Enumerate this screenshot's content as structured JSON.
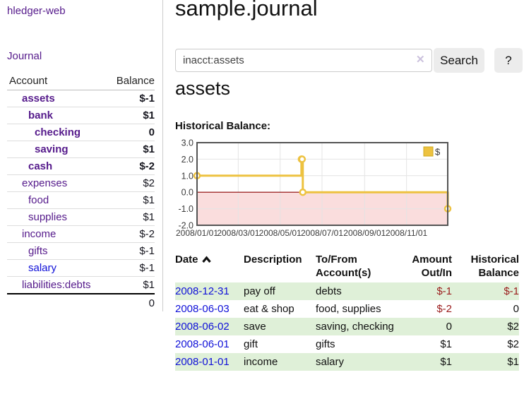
{
  "colors": {
    "link_purple": "#551a8b",
    "link_blue": "#0f10d8",
    "negative_strong": "#9a1b1b",
    "negative_muted": "#b86f6f",
    "row_green": "#dff0d8",
    "series_gold": "#edc240",
    "negative_region_pink": "#fadddd",
    "zero_line_red": "#8b0000",
    "chart_border_gray": "#545454",
    "grid_gray": "#e4e4e4",
    "button_gray": "#ececec"
  },
  "sidebar": {
    "app_title": "hledger-web",
    "journal_link": "Journal",
    "table": {
      "account_header": "Account",
      "balance_header": "Balance",
      "rows": [
        {
          "account": "assets",
          "balance": "$-1",
          "level": 1,
          "bold": true,
          "link_color": "purple",
          "balance_tone": "neg-strong"
        },
        {
          "account": "bank",
          "balance": "$1",
          "level": 2,
          "bold": true,
          "link_color": "purple",
          "balance_tone": ""
        },
        {
          "account": "checking",
          "balance": "0",
          "level": 3,
          "bold": true,
          "link_color": "purple",
          "balance_tone": ""
        },
        {
          "account": "saving",
          "balance": "$1",
          "level": 3,
          "bold": true,
          "link_color": "purple",
          "balance_tone": ""
        },
        {
          "account": "cash",
          "balance": "$-2",
          "level": 2,
          "bold": true,
          "link_color": "purple",
          "balance_tone": "neg-strong"
        },
        {
          "account": "expenses",
          "balance": "$2",
          "level": 1,
          "bold": false,
          "link_color": "purple",
          "balance_tone": ""
        },
        {
          "account": "food",
          "balance": "$1",
          "level": 2,
          "bold": false,
          "link_color": "purple",
          "balance_tone": ""
        },
        {
          "account": "supplies",
          "balance": "$1",
          "level": 2,
          "bold": false,
          "link_color": "purple",
          "balance_tone": ""
        },
        {
          "account": "income",
          "balance": "$-2",
          "level": 1,
          "bold": false,
          "link_color": "purple",
          "balance_tone": "neg-muted"
        },
        {
          "account": "gifts",
          "balance": "$-1",
          "level": 2,
          "bold": false,
          "link_color": "purple",
          "balance_tone": "neg-muted"
        },
        {
          "account": "salary",
          "balance": "$-1",
          "level": 2,
          "bold": false,
          "link_color": "blue",
          "balance_tone": "neg-muted"
        },
        {
          "account": "liabilities:debts",
          "balance": "$1",
          "level": 1,
          "bold": false,
          "link_color": "purple",
          "balance_tone": ""
        }
      ],
      "total": "0"
    }
  },
  "main": {
    "title": "sample.journal",
    "search": {
      "value": "inacct:assets",
      "clear_glyph": "✕",
      "button_label": "Search",
      "help_label": "?"
    },
    "account_title": "assets",
    "chart_label": "Historical Balance:"
  },
  "chart_data": {
    "type": "line",
    "title": "Historical Balance:",
    "step": true,
    "series": [
      {
        "name": "$",
        "color": "#edc240",
        "points": [
          [
            "2008-01-01",
            1
          ],
          [
            "2008-06-01",
            2
          ],
          [
            "2008-06-02",
            2
          ],
          [
            "2008-06-03",
            0
          ],
          [
            "2008-12-31",
            -1
          ]
        ]
      }
    ],
    "ylim": [
      -2,
      3
    ],
    "yticks": [
      3.0,
      2.0,
      1.0,
      0.0,
      -1.0,
      -2.0
    ],
    "xrange": [
      "2008-01-01",
      "2008-12-31"
    ],
    "xticks": [
      "2008/01/01",
      "2008/03/01",
      "2008/05/01",
      "2008/07/01",
      "2008/09/01",
      "2008/11/01"
    ],
    "grid": true,
    "legend": {
      "label": "$",
      "position": "top-right"
    },
    "negative_region_fill": "#fadddd",
    "zero_line_color": "#8b0000"
  },
  "register": {
    "headers": [
      "Date",
      "Description",
      "To/From Account(s)",
      "Amount Out/In",
      "Historical Balance"
    ],
    "rows": [
      {
        "date": "2008-12-31",
        "description": "pay off",
        "accounts": "debts",
        "amount": "$-1",
        "balance": "$-1",
        "amount_negative": true,
        "balance_negative": true
      },
      {
        "date": "2008-06-03",
        "description": "eat & shop",
        "accounts": "food, supplies",
        "amount": "$-2",
        "balance": "0",
        "amount_negative": true,
        "balance_negative": false
      },
      {
        "date": "2008-06-02",
        "description": "save",
        "accounts": "saving, checking",
        "amount": "0",
        "balance": "$2",
        "amount_negative": false,
        "balance_negative": false
      },
      {
        "date": "2008-06-01",
        "description": "gift",
        "accounts": "gifts",
        "amount": "$1",
        "balance": "$2",
        "amount_negative": false,
        "balance_negative": false
      },
      {
        "date": "2008-01-01",
        "description": "income",
        "accounts": "salary",
        "amount": "$1",
        "balance": "$1",
        "amount_negative": false,
        "balance_negative": false
      }
    ]
  }
}
